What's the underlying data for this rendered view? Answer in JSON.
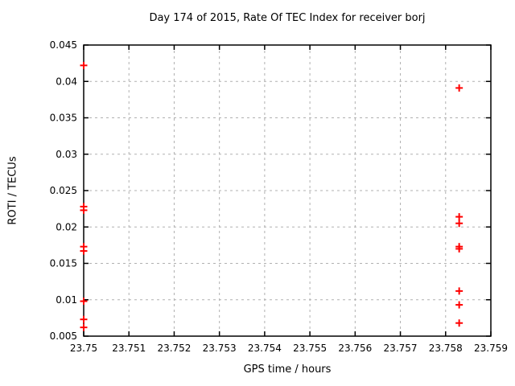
{
  "chart_data": {
    "type": "scatter",
    "title": "Day 174 of 2015, Rate Of TEC Index for receiver borj",
    "xlabel": "GPS time / hours",
    "ylabel": "ROTI / TECUs",
    "xlim": [
      23.75,
      23.759
    ],
    "ylim": [
      0.005,
      0.045
    ],
    "xticks": {
      "values": [
        23.75,
        23.751,
        23.752,
        23.753,
        23.754,
        23.755,
        23.756,
        23.757,
        23.758,
        23.759
      ],
      "labels": [
        "23.75",
        "23.751",
        "23.752",
        "23.753",
        "23.754",
        "23.755",
        "23.756",
        "23.757",
        "23.758",
        "23.759"
      ]
    },
    "yticks": {
      "values": [
        0.005,
        0.01,
        0.015,
        0.02,
        0.025,
        0.03,
        0.035,
        0.04,
        0.045
      ],
      "labels": [
        "0.005",
        "0.01",
        "0.015",
        "0.02",
        "0.025",
        "0.03",
        "0.035",
        "0.04",
        "0.045"
      ]
    },
    "grid": true,
    "legend": "none",
    "series": [
      {
        "name": "ROTI",
        "marker": "plus",
        "color": "#ff0000",
        "points": [
          [
            23.75,
            0.0422
          ],
          [
            23.75,
            0.0228
          ],
          [
            23.75,
            0.0223
          ],
          [
            23.75,
            0.0173
          ],
          [
            23.75,
            0.0167
          ],
          [
            23.75,
            0.0098
          ],
          [
            23.75,
            0.0073
          ],
          [
            23.75,
            0.0062
          ],
          [
            23.7583,
            0.0391
          ],
          [
            23.7583,
            0.0214
          ],
          [
            23.7583,
            0.0205
          ],
          [
            23.7583,
            0.0173
          ],
          [
            23.7583,
            0.017
          ],
          [
            23.7583,
            0.0112
          ],
          [
            23.7583,
            0.0093
          ],
          [
            23.7583,
            0.0068
          ]
        ]
      }
    ],
    "colors": {
      "background": "#ffffff",
      "border": "#000000",
      "grid": "#b0b0b0",
      "marker": "#ff0000",
      "text": "#000000"
    }
  }
}
